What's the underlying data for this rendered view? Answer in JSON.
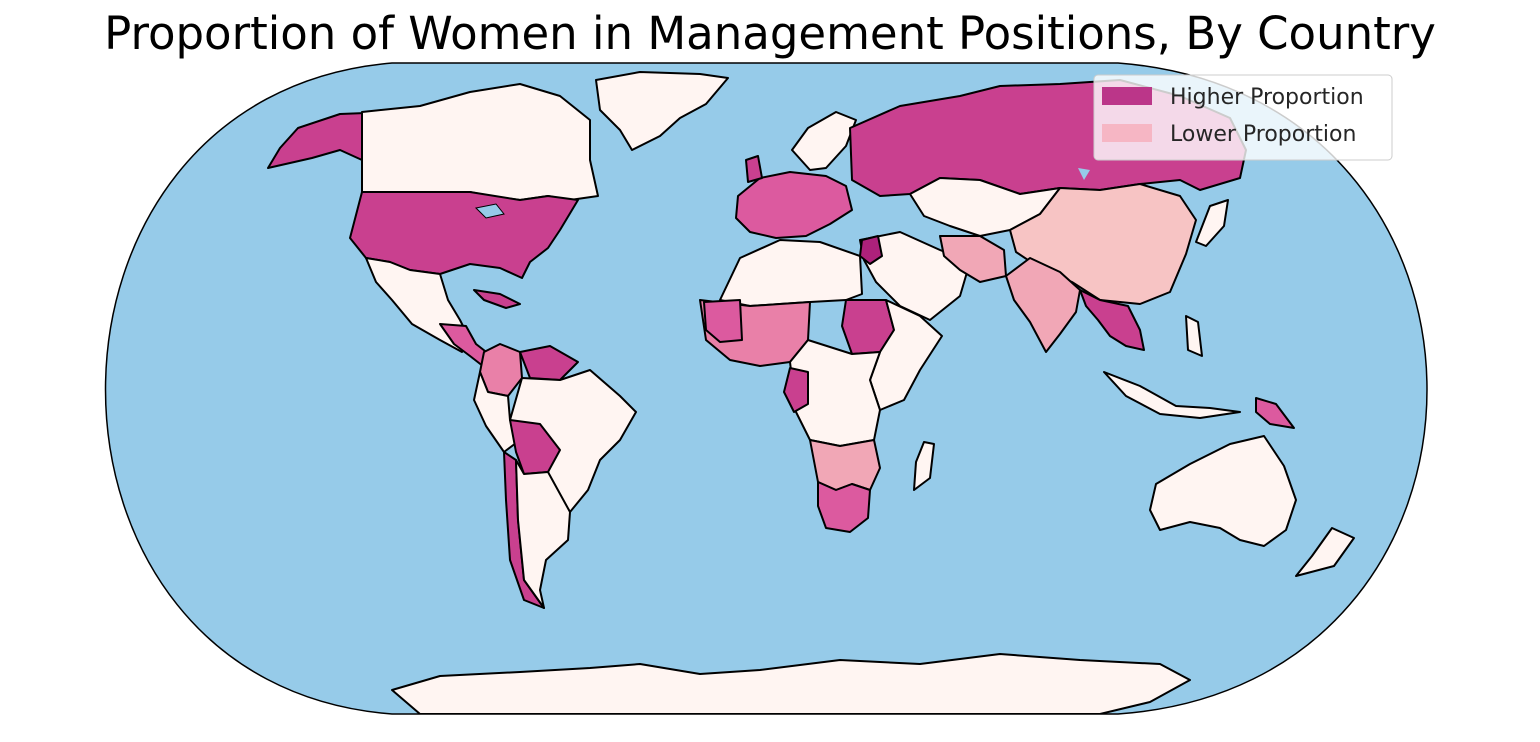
{
  "title": "Proportion of Women in Management Positions, By Country",
  "colors": {
    "ocean": "#96cbe9",
    "no_data": "#fff5f2",
    "highest": "#ad217b",
    "higher": "#c9408f",
    "high_mid": "#dc5a9f",
    "mid": "#e980a8",
    "low_mid": "#f1a7b6",
    "lower": "#f7c4c4",
    "lakes": "#96cbe9"
  },
  "legend": {
    "position": "top-right",
    "items": [
      {
        "label": "Higher Proportion",
        "color": "#bb3689"
      },
      {
        "label": "Lower Proportion",
        "color": "#f6b6c4"
      }
    ]
  },
  "projection": "Robinson",
  "regions": [
    {
      "name": "Alaska",
      "category": "higher"
    },
    {
      "name": "Canada",
      "category": "no_data"
    },
    {
      "name": "Greenland",
      "category": "no_data"
    },
    {
      "name": "United States",
      "category": "higher"
    },
    {
      "name": "Mexico",
      "category": "no_data"
    },
    {
      "name": "Colombia",
      "category": "mid"
    },
    {
      "name": "Bolivia",
      "category": "higher"
    },
    {
      "name": "Chile",
      "category": "higher"
    },
    {
      "name": "Brazil",
      "category": "no_data"
    },
    {
      "name": "Argentina",
      "category": "no_data"
    },
    {
      "name": "Russia",
      "category": "higher"
    },
    {
      "name": "China",
      "category": "lower"
    },
    {
      "name": "India",
      "category": "low_mid"
    },
    {
      "name": "Southeast Asia",
      "category": "higher"
    },
    {
      "name": "Jordan",
      "category": "highest"
    },
    {
      "name": "Sudan",
      "category": "higher"
    },
    {
      "name": "South Africa",
      "category": "high_mid"
    },
    {
      "name": "Australia",
      "category": "no_data"
    },
    {
      "name": "Antarctica",
      "category": "no_data"
    }
  ]
}
